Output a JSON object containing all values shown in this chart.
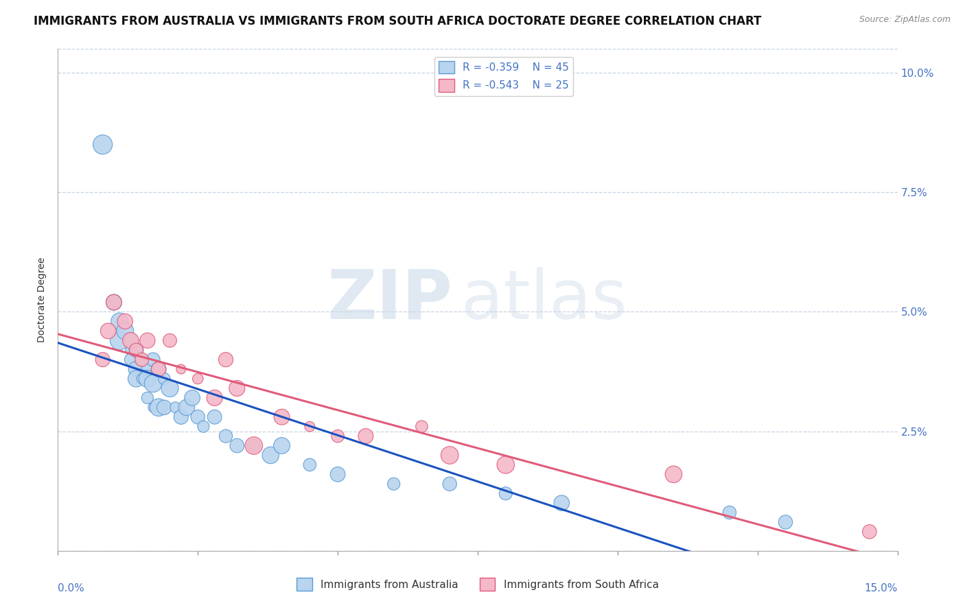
{
  "title": "IMMIGRANTS FROM AUSTRALIA VS IMMIGRANTS FROM SOUTH AFRICA DOCTORATE DEGREE CORRELATION CHART",
  "source": "Source: ZipAtlas.com",
  "ylabel": "Doctorate Degree",
  "xlim": [
    0.0,
    0.15
  ],
  "ylim": [
    0.0,
    0.105
  ],
  "ytick_vals": [
    0.0,
    0.025,
    0.05,
    0.075,
    0.1
  ],
  "ytick_labels_right": [
    "",
    "2.5%",
    "5.0%",
    "7.5%",
    "10.0%"
  ],
  "australia_color": "#b8d4ee",
  "australia_edge_color": "#5b9bd5",
  "south_africa_color": "#f4b8c8",
  "south_africa_edge_color": "#e05a7a",
  "regression_australia_color": "#1a52c0",
  "regression_south_africa_color": "#e05a7a",
  "legend_R_australia": "R = -0.359",
  "legend_N_australia": "N = 45",
  "legend_R_south_africa": "R = -0.543",
  "legend_N_south_africa": "N = 25",
  "australia_x": [
    0.008,
    0.01,
    0.01,
    0.011,
    0.011,
    0.012,
    0.013,
    0.013,
    0.013,
    0.014,
    0.014,
    0.014,
    0.015,
    0.015,
    0.016,
    0.016,
    0.016,
    0.017,
    0.017,
    0.017,
    0.018,
    0.018,
    0.019,
    0.019,
    0.02,
    0.021,
    0.022,
    0.023,
    0.024,
    0.025,
    0.026,
    0.028,
    0.03,
    0.032,
    0.035,
    0.038,
    0.04,
    0.045,
    0.05,
    0.06,
    0.07,
    0.08,
    0.09,
    0.12,
    0.13
  ],
  "australia_y": [
    0.085,
    0.052,
    0.052,
    0.048,
    0.044,
    0.046,
    0.044,
    0.042,
    0.04,
    0.042,
    0.038,
    0.036,
    0.04,
    0.036,
    0.038,
    0.036,
    0.032,
    0.04,
    0.035,
    0.03,
    0.038,
    0.03,
    0.036,
    0.03,
    0.034,
    0.03,
    0.028,
    0.03,
    0.032,
    0.028,
    0.026,
    0.028,
    0.024,
    0.022,
    0.022,
    0.02,
    0.022,
    0.018,
    0.016,
    0.014,
    0.014,
    0.012,
    0.01,
    0.008,
    0.006
  ],
  "south_africa_x": [
    0.008,
    0.009,
    0.01,
    0.012,
    0.013,
    0.014,
    0.015,
    0.016,
    0.018,
    0.02,
    0.022,
    0.025,
    0.028,
    0.03,
    0.032,
    0.035,
    0.04,
    0.045,
    0.05,
    0.055,
    0.065,
    0.07,
    0.08,
    0.11,
    0.145
  ],
  "south_africa_y": [
    0.04,
    0.046,
    0.052,
    0.048,
    0.044,
    0.042,
    0.04,
    0.044,
    0.038,
    0.044,
    0.038,
    0.036,
    0.032,
    0.04,
    0.034,
    0.022,
    0.028,
    0.026,
    0.024,
    0.024,
    0.026,
    0.02,
    0.018,
    0.016,
    0.004
  ],
  "watermark_zip": "ZIP",
  "watermark_atlas": "atlas",
  "title_fontsize": 12,
  "axis_label_fontsize": 10,
  "tick_fontsize": 11,
  "legend_fontsize": 11,
  "background_color": "#ffffff",
  "grid_color": "#b8c8dc",
  "title_color": "#111111",
  "axis_color": "#4472c4"
}
